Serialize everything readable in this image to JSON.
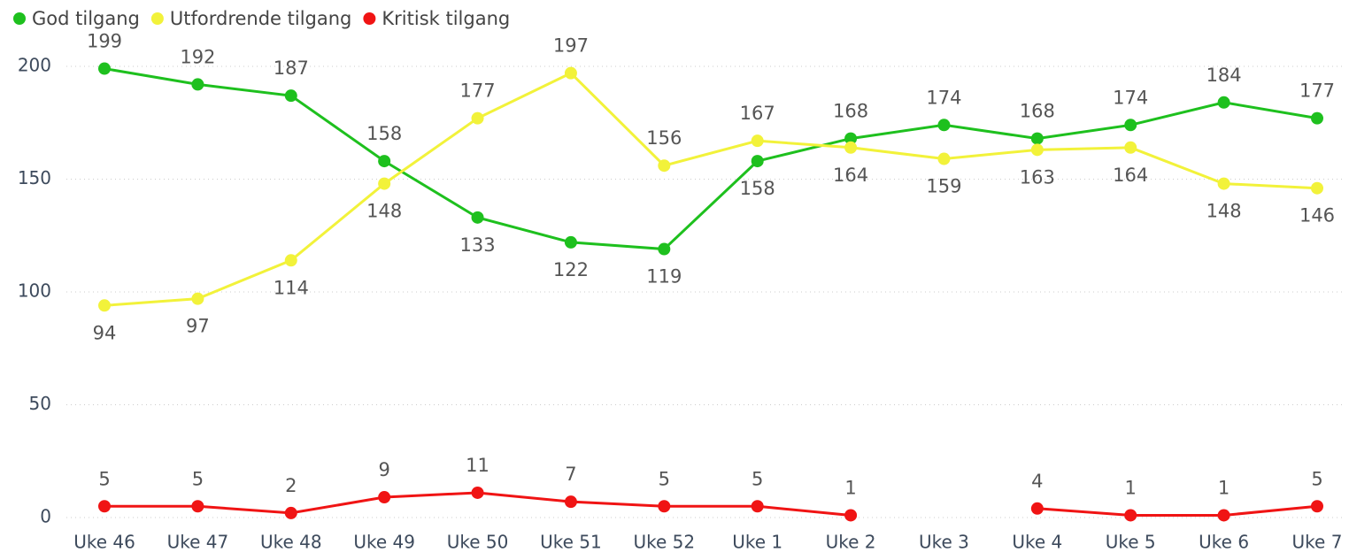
{
  "chart_data": {
    "type": "line",
    "categories": [
      "Uke 46",
      "Uke 47",
      "Uke 48",
      "Uke 49",
      "Uke 50",
      "Uke 51",
      "Uke 52",
      "Uke 1",
      "Uke 2",
      "Uke 3",
      "Uke 4",
      "Uke 5",
      "Uke 6",
      "Uke 7"
    ],
    "series": [
      {
        "name": "God tilgang",
        "color": "#1ec01e",
        "values": [
          199,
          192,
          187,
          158,
          133,
          122,
          119,
          158,
          168,
          174,
          168,
          174,
          184,
          177
        ]
      },
      {
        "name": "Utfordrende tilgang",
        "color": "#f2f23a",
        "values": [
          94,
          97,
          114,
          148,
          177,
          197,
          156,
          167,
          164,
          159,
          163,
          164,
          148,
          146
        ]
      },
      {
        "name": "Kritisk tilgang",
        "color": "#f01414",
        "values": [
          5,
          5,
          2,
          9,
          11,
          7,
          5,
          5,
          1,
          null,
          4,
          1,
          1,
          5
        ]
      }
    ],
    "ylim": [
      0,
      200
    ],
    "yticks": [
      0,
      50,
      100,
      150,
      200
    ],
    "grid": true,
    "legend": "top-left"
  }
}
